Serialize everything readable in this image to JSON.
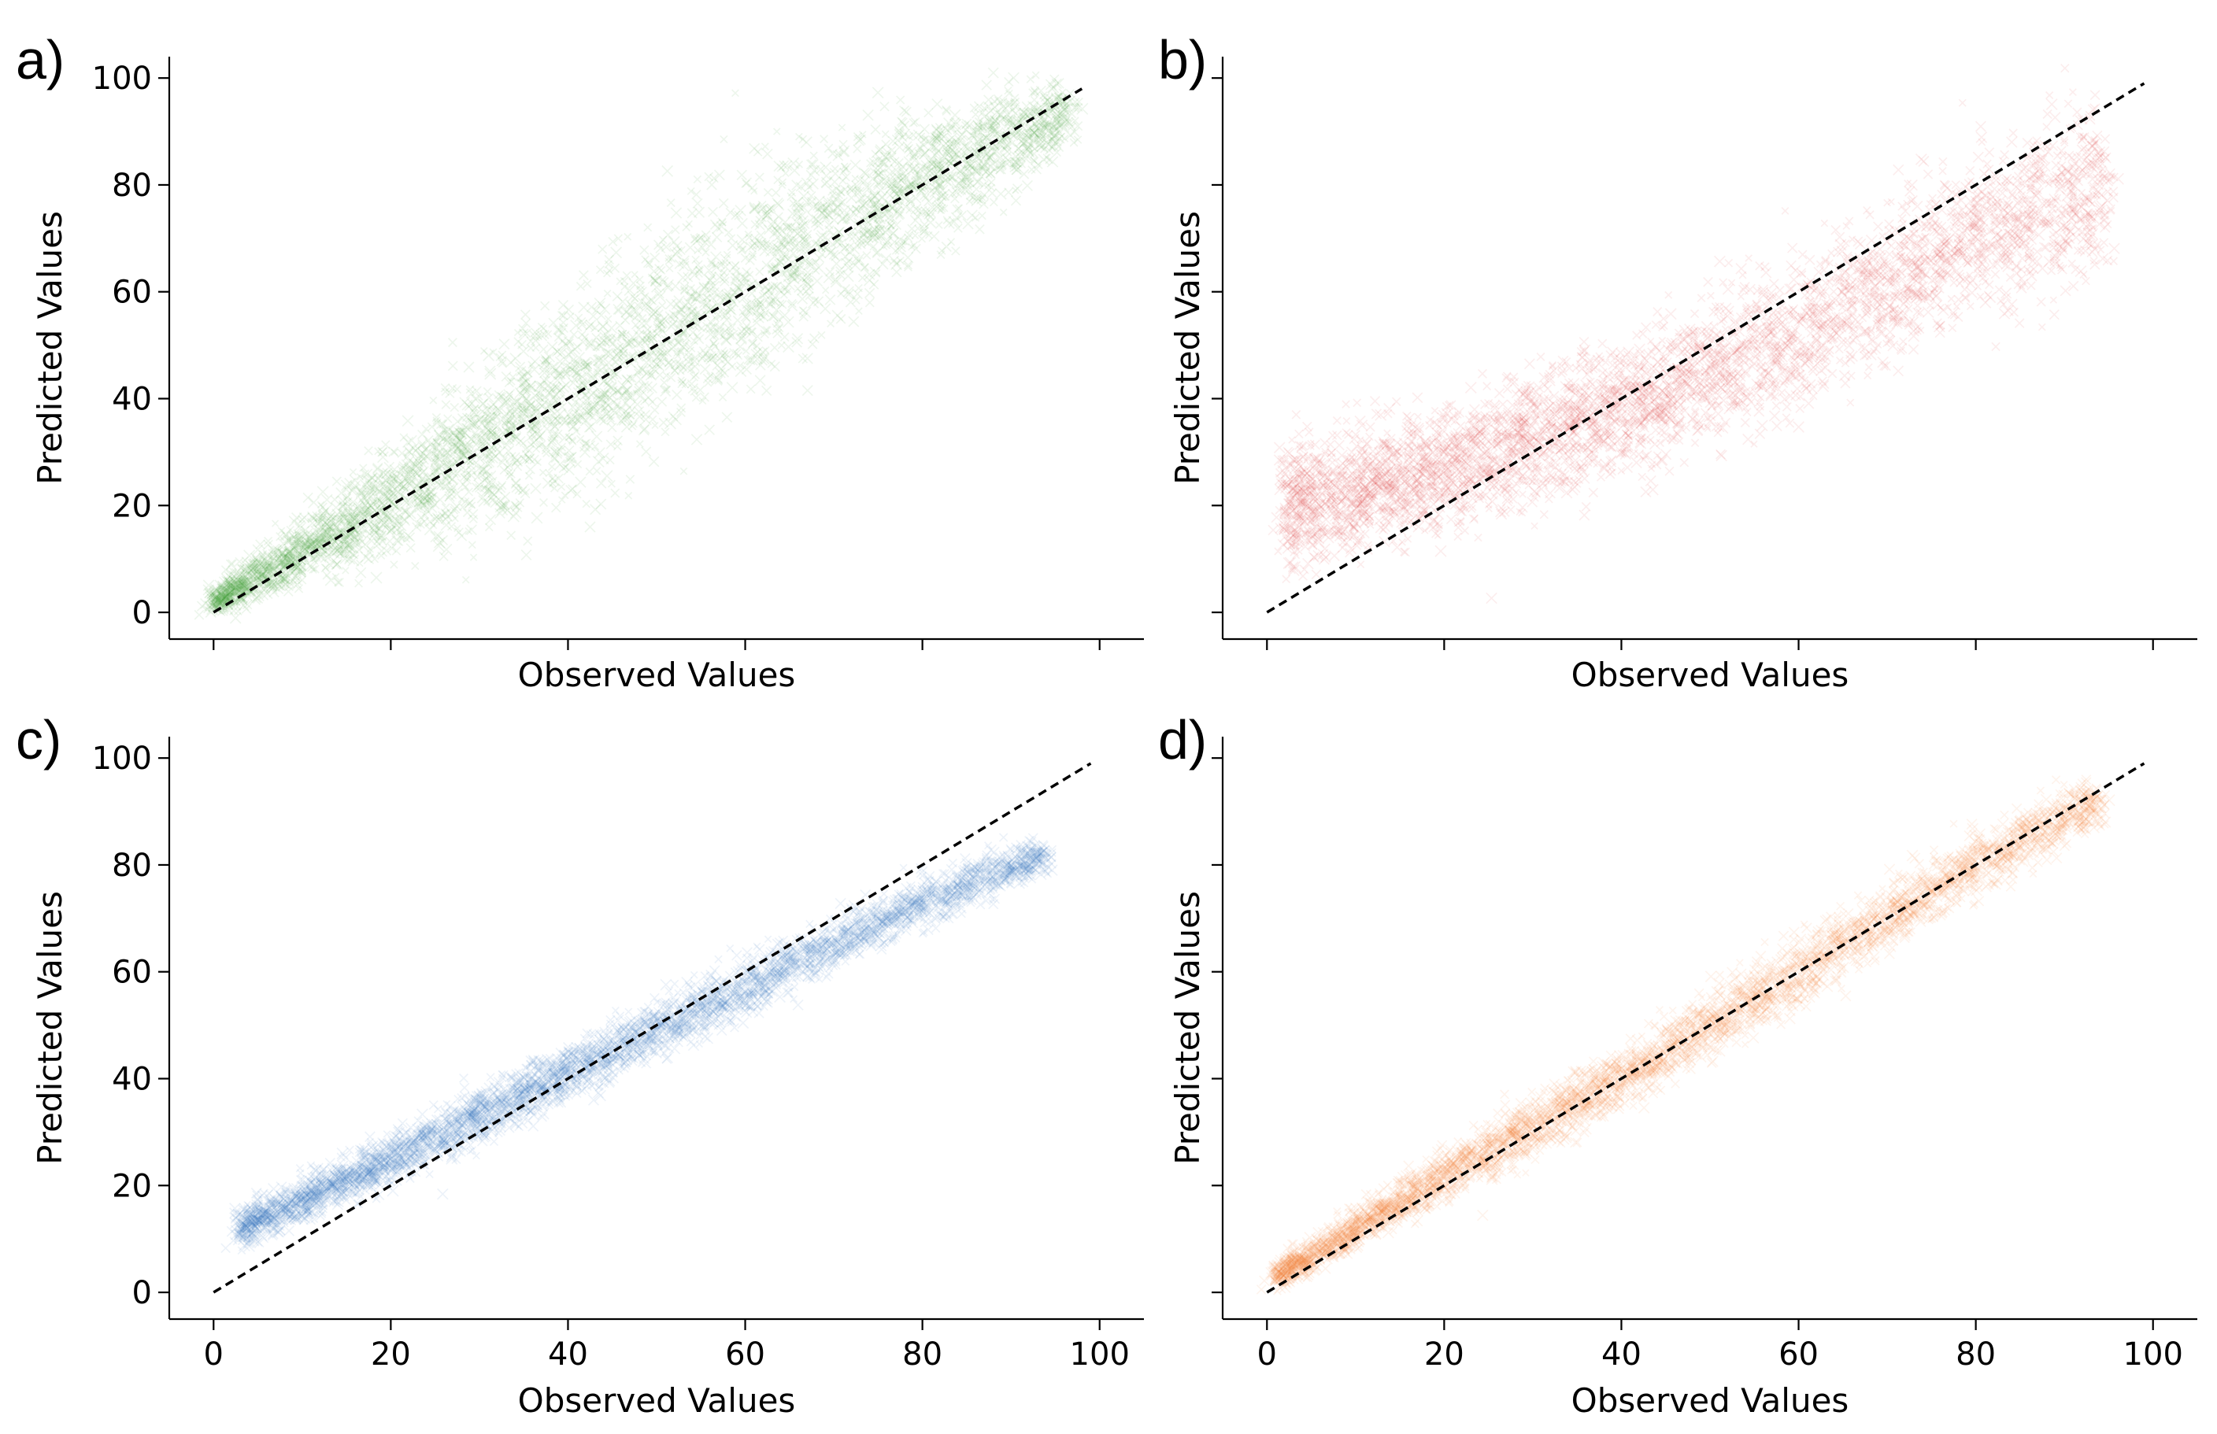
{
  "chart_data": [
    {
      "panel_label": "a)",
      "type": "scatter",
      "color": "#3a9a2a",
      "xlabel": "Observed Values",
      "ylabel": "Predicted Values",
      "xlim": [
        -5,
        105
      ],
      "ylim": [
        -5,
        104
      ],
      "yticks": [
        0,
        20,
        40,
        60,
        80,
        100
      ],
      "xticks": [
        0,
        20,
        40,
        60,
        80,
        100
      ],
      "show_x_tick_labels": false,
      "show_y_tick_labels": true,
      "reference_line": {
        "x": [
          0,
          98
        ],
        "y": [
          0,
          98
        ]
      },
      "point_cloud": {
        "n": 4200,
        "x_range": [
          0,
          97
        ],
        "center": [
          [
            0,
            2
          ],
          [
            20,
            21
          ],
          [
            40,
            40
          ],
          [
            60,
            62
          ],
          [
            80,
            81
          ],
          [
            97,
            94
          ]
        ],
        "spread": [
          [
            0,
            2
          ],
          [
            20,
            9
          ],
          [
            40,
            17
          ],
          [
            60,
            18
          ],
          [
            80,
            12
          ],
          [
            97,
            5
          ]
        ]
      }
    },
    {
      "panel_label": "b)",
      "type": "scatter",
      "color": "#e03a32",
      "xlabel": "Observed Values",
      "ylabel": "Predicted Values",
      "xlim": [
        -5,
        105
      ],
      "ylim": [
        -5,
        104
      ],
      "yticks": [
        0,
        20,
        40,
        60,
        80,
        100
      ],
      "xticks": [
        0,
        20,
        40,
        60,
        80,
        100
      ],
      "show_x_tick_labels": false,
      "show_y_tick_labels": false,
      "reference_line": {
        "x": [
          0,
          99
        ],
        "y": [
          0,
          99
        ]
      },
      "point_cloud": {
        "n": 4200,
        "x_range": [
          2,
          95
        ],
        "center": [
          [
            2,
            20
          ],
          [
            20,
            27
          ],
          [
            40,
            38
          ],
          [
            60,
            52
          ],
          [
            80,
            70
          ],
          [
            95,
            80
          ]
        ],
        "spread": [
          [
            2,
            10
          ],
          [
            20,
            10
          ],
          [
            40,
            11
          ],
          [
            60,
            12
          ],
          [
            80,
            13
          ],
          [
            95,
            14
          ]
        ]
      }
    },
    {
      "panel_label": "c)",
      "type": "scatter",
      "color": "#2a74bb",
      "xlabel": "Observed Values",
      "ylabel": "Predicted Values",
      "xlim": [
        -5,
        105
      ],
      "ylim": [
        -5,
        104
      ],
      "yticks": [
        0,
        20,
        40,
        60,
        80,
        100
      ],
      "xticks": [
        0,
        20,
        40,
        60,
        80,
        100
      ],
      "show_x_tick_labels": true,
      "show_y_tick_labels": true,
      "reference_line": {
        "x": [
          0,
          99
        ],
        "y": [
          0,
          99
        ]
      },
      "point_cloud": {
        "n": 4200,
        "x_range": [
          3,
          94
        ],
        "center": [
          [
            3,
            12
          ],
          [
            20,
            25
          ],
          [
            40,
            41
          ],
          [
            60,
            57
          ],
          [
            80,
            73
          ],
          [
            94,
            82
          ]
        ],
        "spread": [
          [
            3,
            3
          ],
          [
            20,
            4
          ],
          [
            40,
            4.5
          ],
          [
            60,
            4.5
          ],
          [
            80,
            4
          ],
          [
            94,
            3
          ]
        ]
      }
    },
    {
      "panel_label": "d)",
      "type": "scatter",
      "color": "#f07a2a",
      "xlabel": "Observed Values",
      "ylabel": "Predicted Values",
      "xlim": [
        -5,
        105
      ],
      "ylim": [
        -5,
        104
      ],
      "yticks": [
        0,
        20,
        40,
        60,
        80,
        100
      ],
      "xticks": [
        0,
        20,
        40,
        60,
        80,
        100
      ],
      "show_x_tick_labels": true,
      "show_y_tick_labels": false,
      "reference_line": {
        "x": [
          0,
          99
        ],
        "y": [
          0,
          99
        ]
      },
      "point_cloud": {
        "n": 4200,
        "x_range": [
          1,
          94
        ],
        "center": [
          [
            1,
            3
          ],
          [
            20,
            22
          ],
          [
            40,
            40
          ],
          [
            60,
            60
          ],
          [
            80,
            80
          ],
          [
            94,
            92
          ]
        ],
        "spread": [
          [
            1,
            2
          ],
          [
            20,
            4
          ],
          [
            40,
            5
          ],
          [
            60,
            5.5
          ],
          [
            80,
            5
          ],
          [
            94,
            4
          ]
        ]
      }
    }
  ]
}
